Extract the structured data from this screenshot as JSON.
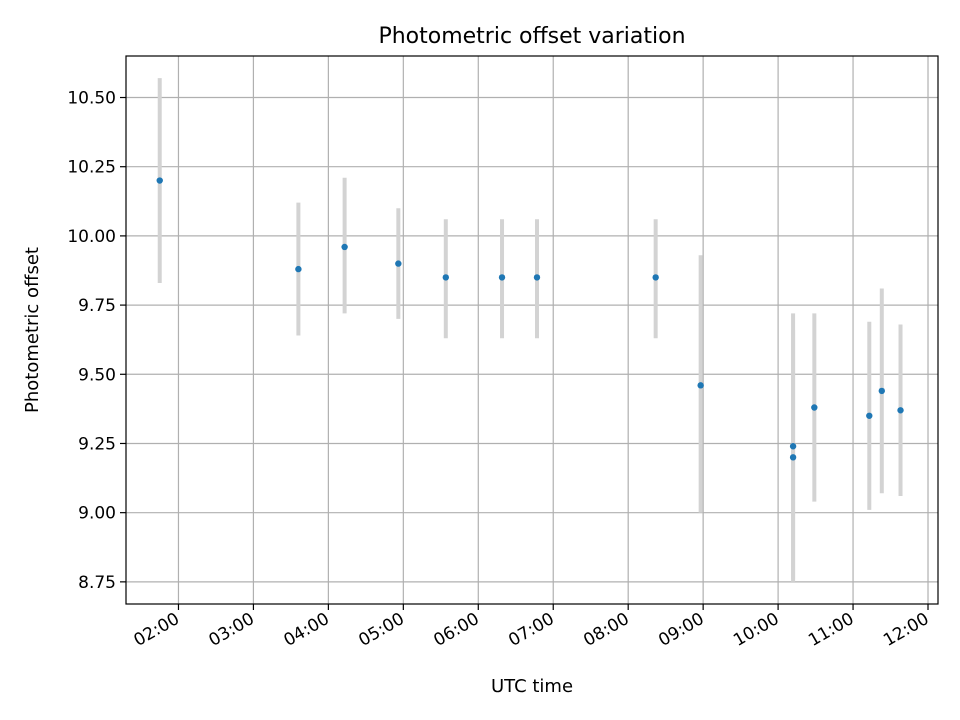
{
  "chart_data": {
    "type": "scatter",
    "title": "Photometric offset variation",
    "xlabel": "UTC time",
    "ylabel": "Photometric offset",
    "x_axis_type": "time",
    "xlim": [
      "01:18",
      "12:08"
    ],
    "ylim": [
      8.67,
      10.65
    ],
    "x_ticks": [
      "02:00",
      "03:00",
      "04:00",
      "05:00",
      "06:00",
      "07:00",
      "08:00",
      "09:00",
      "10:00",
      "11:00",
      "12:00"
    ],
    "y_ticks": [
      "8.75",
      "9.00",
      "9.25",
      "9.50",
      "9.75",
      "10.00",
      "10.25",
      "10.50"
    ],
    "grid": true,
    "legend": "none",
    "marker_color": "#1f77b4",
    "errorbar_color": "#d3d3d3",
    "points": [
      {
        "x": "01:45",
        "y": 10.2,
        "ylow": 9.83,
        "yhigh": 10.57
      },
      {
        "x": "03:36",
        "y": 9.88,
        "ylow": 9.64,
        "yhigh": 10.12
      },
      {
        "x": "04:13",
        "y": 9.96,
        "ylow": 9.72,
        "yhigh": 10.21
      },
      {
        "x": "04:56",
        "y": 9.9,
        "ylow": 9.7,
        "yhigh": 10.1
      },
      {
        "x": "05:34",
        "y": 9.85,
        "ylow": 9.63,
        "yhigh": 10.06
      },
      {
        "x": "06:19",
        "y": 9.85,
        "ylow": 9.63,
        "yhigh": 10.06
      },
      {
        "x": "06:47",
        "y": 9.85,
        "ylow": 9.63,
        "yhigh": 10.06
      },
      {
        "x": "08:22",
        "y": 9.85,
        "ylow": 9.63,
        "yhigh": 10.06
      },
      {
        "x": "08:58",
        "y": 9.46,
        "ylow": 9.0,
        "yhigh": 9.93
      },
      {
        "x": "10:12",
        "y": 9.24,
        "ylow": 8.76,
        "yhigh": 9.72
      },
      {
        "x": "10:12",
        "y": 9.2,
        "ylow": 8.75,
        "yhigh": 9.66
      },
      {
        "x": "10:29",
        "y": 9.38,
        "ylow": 9.04,
        "yhigh": 9.72
      },
      {
        "x": "11:13",
        "y": 9.35,
        "ylow": 9.01,
        "yhigh": 9.69
      },
      {
        "x": "11:23",
        "y": 9.44,
        "ylow": 9.07,
        "yhigh": 9.81
      },
      {
        "x": "11:38",
        "y": 9.37,
        "ylow": 9.06,
        "yhigh": 9.68
      }
    ]
  }
}
